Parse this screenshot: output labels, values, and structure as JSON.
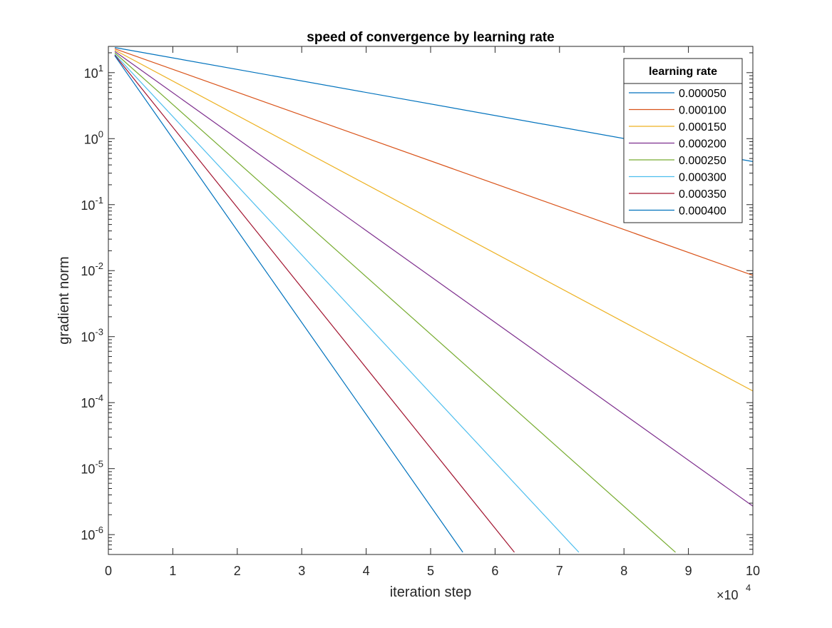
{
  "chart_data": {
    "type": "line",
    "title": "speed of convergence by learning rate",
    "xlabel": "iteration step",
    "ylabel": "gradient norm",
    "x_scale": "linear",
    "x_multiplier_label": "×10",
    "x_multiplier_exponent": "4",
    "xlim": [
      0,
      100000
    ],
    "x_tick_values": [
      0,
      10000,
      20000,
      30000,
      40000,
      50000,
      60000,
      70000,
      80000,
      90000,
      100000
    ],
    "x_tick_labels": [
      "0",
      "1",
      "2",
      "3",
      "4",
      "5",
      "6",
      "7",
      "8",
      "9",
      "10"
    ],
    "y_scale": "log",
    "ylim": [
      5e-07,
      25
    ],
    "y_tick_values": [
      1e-06,
      1e-05,
      0.0001,
      0.001,
      0.01,
      0.1,
      1,
      10
    ],
    "y_tick_exponents": [
      "-6",
      "-5",
      "-4",
      "-3",
      "-2",
      "-1",
      "0",
      "1"
    ],
    "y_tick_base": "10",
    "grid": false,
    "legend": {
      "title": "learning rate",
      "position": "top-right"
    },
    "series": [
      {
        "name": "0.000050",
        "color": "#0072BD",
        "x": [
          1000,
          100000
        ],
        "y": [
          24,
          0.45
        ]
      },
      {
        "name": "0.000100",
        "color": "#D95319",
        "x": [
          1000,
          100000
        ],
        "y": [
          23,
          0.0085
        ]
      },
      {
        "name": "0.000150",
        "color": "#EDB120",
        "x": [
          1000,
          100000
        ],
        "y": [
          22,
          0.00015
        ]
      },
      {
        "name": "0.000200",
        "color": "#7E2F8E",
        "x": [
          1000,
          100000
        ],
        "y": [
          21,
          2.7e-06
        ]
      },
      {
        "name": "0.000250",
        "color": "#77AC30",
        "x": [
          1000,
          88000
        ],
        "y": [
          20,
          5.4e-07
        ]
      },
      {
        "name": "0.000300",
        "color": "#4DBEEE",
        "x": [
          1000,
          73000
        ],
        "y": [
          19,
          5.4e-07
        ]
      },
      {
        "name": "0.000350",
        "color": "#A2142F",
        "x": [
          1000,
          63000
        ],
        "y": [
          18.5,
          5.4e-07
        ]
      },
      {
        "name": "0.000400",
        "color": "#0072BD",
        "x": [
          1000,
          55000
        ],
        "y": [
          18,
          5.4e-07
        ]
      }
    ]
  }
}
